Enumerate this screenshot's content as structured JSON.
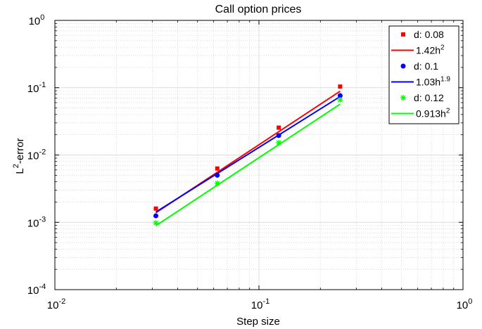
{
  "chart_data": {
    "type": "scatter",
    "title": "Call option prices",
    "xlabel": "Step size",
    "ylabel_base": "L",
    "ylabel_sup": "2",
    "ylabel_rest": "-error",
    "xscale": "log",
    "yscale": "log",
    "xlim": [
      0.01,
      1
    ],
    "ylim": [
      0.0001,
      1
    ],
    "grid": true,
    "legend_position": "top-right",
    "x_ticks": [
      {
        "value": 0.01,
        "base": "10",
        "exp": "-2"
      },
      {
        "value": 0.1,
        "base": "10",
        "exp": "-1"
      },
      {
        "value": 1,
        "base": "10",
        "exp": "0"
      }
    ],
    "y_ticks": [
      {
        "value": 0.0001,
        "base": "10",
        "exp": "-4"
      },
      {
        "value": 0.001,
        "base": "10",
        "exp": "-3"
      },
      {
        "value": 0.01,
        "base": "10",
        "exp": "-2"
      },
      {
        "value": 0.1,
        "base": "10",
        "exp": "-1"
      },
      {
        "value": 1,
        "base": "10",
        "exp": "0"
      }
    ],
    "series": [
      {
        "name": "d: 0.08",
        "kind": "marker",
        "marker": "square",
        "color": "#ff0000",
        "x": [
          0.03125,
          0.0625,
          0.125,
          0.25
        ],
        "y": [
          0.0016,
          0.0063,
          0.0255,
          0.104
        ]
      },
      {
        "name": "1.42h",
        "name_sup": "2",
        "kind": "line",
        "color": "#ff0000",
        "coef": 1.42,
        "power": 2,
        "x": [
          0.03125,
          0.25
        ]
      },
      {
        "name": "d: 0.1",
        "kind": "marker",
        "marker": "circle",
        "color": "#0000ff",
        "x": [
          0.03125,
          0.0625,
          0.125,
          0.25
        ],
        "y": [
          0.00125,
          0.005,
          0.0195,
          0.0762
        ]
      },
      {
        "name": "1.03h",
        "name_sup": "1.9",
        "kind": "line",
        "color": "#0000ff",
        "coef": 1.03,
        "power": 1.9,
        "x": [
          0.03125,
          0.25
        ]
      },
      {
        "name": "d: 0.12",
        "kind": "marker",
        "marker": "asterisk",
        "color": "#00ff00",
        "x": [
          0.03125,
          0.0625,
          0.125,
          0.25
        ],
        "y": [
          0.00098,
          0.0038,
          0.0153,
          0.066
        ]
      },
      {
        "name": "0.913h",
        "name_sup": "2",
        "kind": "line",
        "color": "#00ff00",
        "coef": 0.913,
        "power": 2,
        "x": [
          0.03125,
          0.25
        ]
      }
    ]
  }
}
